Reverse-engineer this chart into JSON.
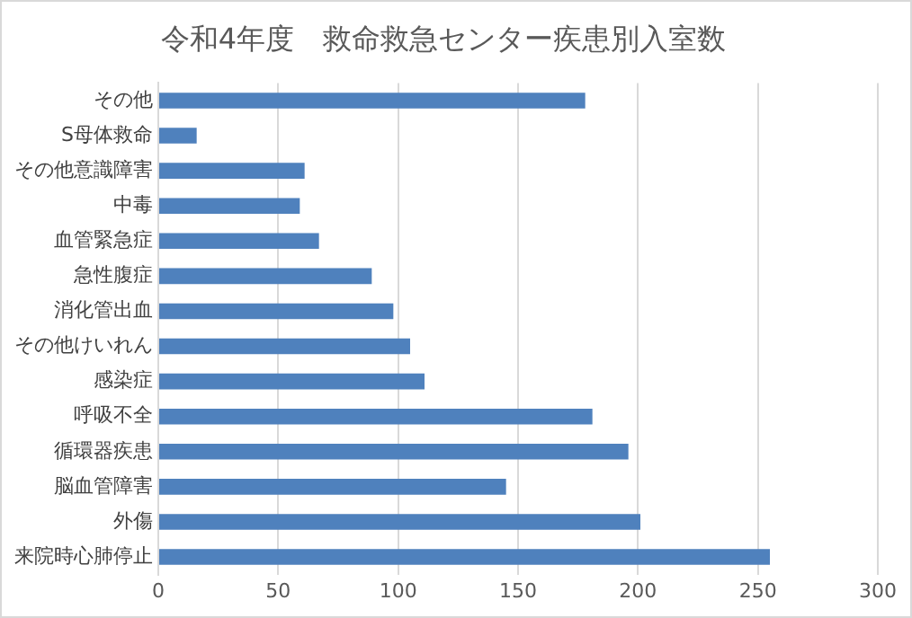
{
  "chart_data": {
    "type": "bar",
    "orientation": "horizontal",
    "title": "令和4年度　救命救急センター疾患別入室数",
    "categories": [
      "その他",
      "S母体救命",
      "その他意識障害",
      "中毒",
      "血管緊急症",
      "急性腹症",
      "消化管出血",
      "その他けいれん",
      "感染症",
      "呼吸不全",
      "循環器疾患",
      "脳血管障害",
      "外傷",
      "来院時心肺停止"
    ],
    "values": [
      178,
      16,
      61,
      59,
      67,
      89,
      98,
      105,
      111,
      181,
      196,
      145,
      201,
      255
    ],
    "color": "#4f81bd",
    "xlim": [
      0,
      300
    ],
    "xticks": [
      0,
      50,
      100,
      150,
      200,
      250,
      300
    ],
    "grid": "x",
    "legend": false
  }
}
